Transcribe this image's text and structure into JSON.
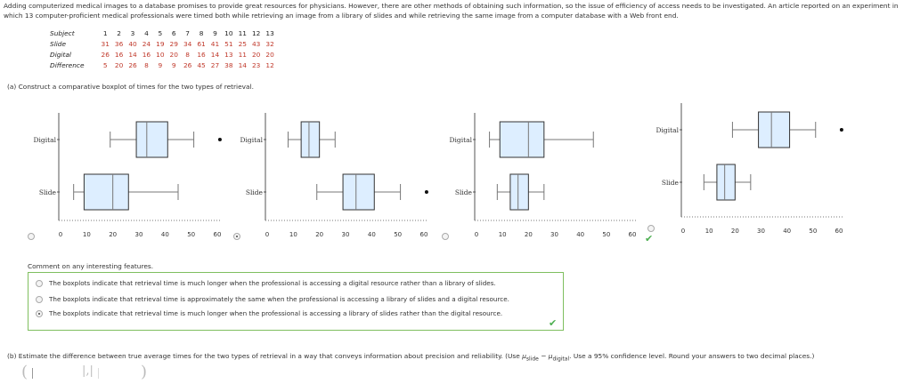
{
  "intro": "Adding computerized medical images to a database promises to provide great resources for physicians. However, there are other methods of obtaining such information, so the issue of efficiency of access needs to be investigated. An article reported on an experiment in which 13 computer-proficient medical professionals were timed both while retrieving an image from a library of slides and while retrieving the same image from a computer database with a Web front end.",
  "table": {
    "rows": [
      {
        "label": "Subject",
        "values": [
          "1",
          "2",
          "3",
          "4",
          "5",
          "6",
          "7",
          "8",
          "9",
          "10",
          "11",
          "12",
          "13"
        ]
      },
      {
        "label": "Slide",
        "values": [
          "31",
          "36",
          "40",
          "24",
          "19",
          "29",
          "34",
          "61",
          "41",
          "51",
          "25",
          "43",
          "32"
        ]
      },
      {
        "label": "Digital",
        "values": [
          "26",
          "16",
          "14",
          "16",
          "10",
          "20",
          "8",
          "16",
          "14",
          "13",
          "11",
          "20",
          "20"
        ]
      },
      {
        "label": "Difference",
        "values": [
          "5",
          "20",
          "26",
          "8",
          "9",
          "9",
          "26",
          "45",
          "27",
          "38",
          "14",
          "23",
          "12"
        ]
      }
    ]
  },
  "part_a": "(a)  Construct a comparative boxplot of times for the two types of retrieval.",
  "plots": {
    "category_labels": [
      "Digital",
      "Slide"
    ],
    "tick_labels": [
      "0",
      "10",
      "20",
      "30",
      "40",
      "50",
      "60"
    ]
  },
  "chart_data": [
    {
      "type": "boxplot",
      "option": 1,
      "selected": false,
      "categories": [
        "Digital",
        "Slide"
      ],
      "boxes": [
        {
          "name": "Digital",
          "whisker_low": 19,
          "q1": 29,
          "median": 33,
          "q3": 41,
          "whisker_high": 51,
          "outliers": [
            61
          ]
        },
        {
          "name": "Slide",
          "whisker_low": 5,
          "q1": 9,
          "median": 20,
          "q3": 26,
          "whisker_high": 45,
          "outliers": []
        }
      ],
      "xlim": [
        0,
        60
      ]
    },
    {
      "type": "boxplot",
      "option": 2,
      "selected": true,
      "categories": [
        "Digital",
        "Slide"
      ],
      "boxes": [
        {
          "name": "Digital",
          "whisker_low": 8,
          "q1": 13,
          "median": 16,
          "q3": 20,
          "whisker_high": 26,
          "outliers": []
        },
        {
          "name": "Slide",
          "whisker_low": 19,
          "q1": 29,
          "median": 34,
          "q3": 41,
          "whisker_high": 51,
          "outliers": [
            61
          ]
        }
      ],
      "xlim": [
        0,
        60
      ]
    },
    {
      "type": "boxplot",
      "option": 3,
      "selected": false,
      "categories": [
        "Digital",
        "Slide"
      ],
      "boxes": [
        {
          "name": "Digital",
          "whisker_low": 5,
          "q1": 9,
          "median": 20,
          "q3": 26,
          "whisker_high": 45,
          "outliers": []
        },
        {
          "name": "Slide",
          "whisker_low": 8,
          "q1": 13,
          "median": 16,
          "q3": 20,
          "whisker_high": 26,
          "outliers": []
        }
      ],
      "xlim": [
        0,
        60
      ]
    },
    {
      "type": "boxplot",
      "option": 4,
      "selected": false,
      "categories": [
        "Digital",
        "Slide"
      ],
      "boxes": [
        {
          "name": "Digital",
          "whisker_low": 19,
          "q1": 29,
          "median": 34,
          "q3": 41,
          "whisker_high": 51,
          "outliers": [
            61
          ]
        },
        {
          "name": "Slide",
          "whisker_low": 8,
          "q1": 13,
          "median": 16,
          "q3": 20,
          "whisker_high": 26,
          "outliers": []
        }
      ],
      "xlim": [
        0,
        60
      ]
    }
  ],
  "comment_prompt": "Comment on any interesting features.",
  "choices": [
    {
      "text": "The boxplots indicate that retrieval time is much longer when the professional is accessing a digital resource rather than a library of slides.",
      "selected": false
    },
    {
      "text": "The boxplots indicate that retrieval time is approximately the same when the professional is accessing a library of slides and a digital resource.",
      "selected": false
    },
    {
      "text": "The boxplots indicate that retrieval time is much longer when the professional is accessing a library of slides rather than the digital resource.",
      "selected": true
    }
  ],
  "part_b": {
    "prefix": "(b)  Estimate the difference between true average times for the two types of retrieval in a way that conveys information about precision and reliability. (Use ",
    "mu1": "μ",
    "sub1": "slide",
    "minus": " − ",
    "mu2": "μ",
    "sub2": "digital",
    "suffix": ". Use a 95% confidence level. Round your answers to two decimal places.)"
  },
  "answer": {
    "lower": "",
    "upper": "",
    "sep": "|,|"
  },
  "colors": {
    "box_fill": "#ddeeff",
    "box_stroke": "#333333",
    "check": "#4caf50",
    "border": "#7fbf5f"
  }
}
